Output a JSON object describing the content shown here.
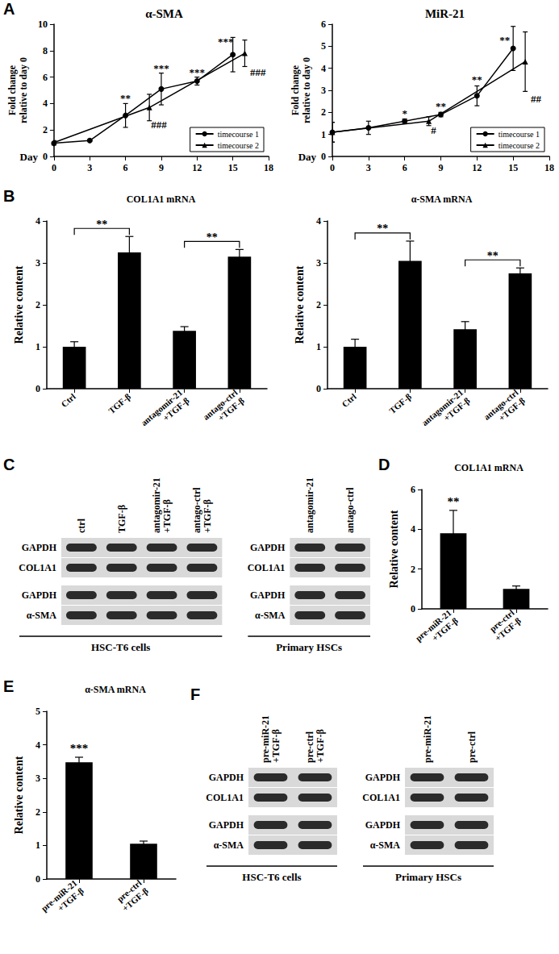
{
  "chart_data": [
    {
      "panel": "A",
      "type": "line",
      "title": "α-SMA",
      "x_label": "Day",
      "y_label": "Fold change\nrelative to day 0",
      "xlim": [
        0,
        18
      ],
      "xticks": [
        0,
        3,
        6,
        9,
        12,
        15,
        18
      ],
      "ylim": [
        0,
        10
      ],
      "yticks": [
        0,
        2,
        4,
        6,
        8,
        10
      ],
      "grid": false,
      "legend": "lower right",
      "series": [
        {
          "name": "timecourse 1",
          "color": "#000000",
          "marker": "circle",
          "line_style": "solid",
          "x": [
            0,
            3,
            6,
            9,
            12,
            15
          ],
          "values": [
            1.0,
            1.2,
            3.1,
            5.1,
            5.7,
            7.7
          ],
          "errors": [
            0.1,
            0.05,
            0.9,
            1.2,
            0.3,
            1.3
          ]
        },
        {
          "name": "timecourse 2",
          "color": "#000000",
          "marker": "triangle",
          "line_style": "solid",
          "x": [
            0,
            8,
            16
          ],
          "values": [
            1.05,
            3.7,
            7.8
          ],
          "errors": [
            0.15,
            1.0,
            1.0
          ]
        }
      ],
      "annotations": [
        {
          "x": 6,
          "y": 4.4,
          "text": "**"
        },
        {
          "x": 9,
          "y": 6.7,
          "text": "***"
        },
        {
          "x": 12,
          "y": 6.4,
          "text": "***"
        },
        {
          "x": 14.4,
          "y": 8.7,
          "text": "***"
        },
        {
          "x": 8.8,
          "y": 2.4,
          "text": "###"
        },
        {
          "x": 17.1,
          "y": 6.4,
          "text": "###"
        }
      ]
    },
    {
      "panel": "A",
      "type": "line",
      "title": "MiR-21",
      "x_label": "Day",
      "y_label": "Fold change\nrelative to day 0",
      "xlim": [
        0,
        18
      ],
      "xticks": [
        0,
        3,
        6,
        9,
        12,
        15,
        18
      ],
      "ylim": [
        0,
        6
      ],
      "yticks": [
        0,
        1,
        2,
        3,
        4,
        5,
        6
      ],
      "grid": false,
      "legend": "lower right",
      "series": [
        {
          "name": "timecourse 1",
          "color": "#000000",
          "marker": "circle",
          "line_style": "solid",
          "x": [
            0,
            3,
            6,
            9,
            12,
            15
          ],
          "values": [
            1.1,
            1.3,
            1.6,
            1.9,
            2.75,
            4.9
          ],
          "errors": [
            0.45,
            0.3,
            0.1,
            0.1,
            0.45,
            1.0
          ]
        },
        {
          "name": "timecourse 2",
          "color": "#000000",
          "marker": "triangle",
          "line_style": "solid",
          "x": [
            0,
            8,
            16
          ],
          "values": [
            1.1,
            1.6,
            4.3
          ],
          "errors": [
            0.45,
            0.2,
            1.35
          ]
        }
      ],
      "annotations": [
        {
          "x": 6,
          "y": 1.95,
          "text": "*"
        },
        {
          "x": 9,
          "y": 2.3,
          "text": "**"
        },
        {
          "x": 12,
          "y": 3.5,
          "text": "**"
        },
        {
          "x": 14.3,
          "y": 5.3,
          "text": "**"
        },
        {
          "x": 8.4,
          "y": 1.2,
          "text": "#"
        },
        {
          "x": 16.9,
          "y": 2.6,
          "text": "##"
        }
      ]
    },
    {
      "panel": "B",
      "type": "bar",
      "title": "COL1A1 mRNA",
      "y_label": "Relative content",
      "categories": [
        "Ctrl",
        "TGF-β",
        "antagomir-21\n+TGF-β",
        "antago-ctrl\n+TGF-β"
      ],
      "values": [
        1.0,
        3.25,
        1.38,
        3.15
      ],
      "errors": [
        0.12,
        0.38,
        0.1,
        0.17
      ],
      "color": "#000000",
      "ylim": [
        0,
        4
      ],
      "yticks": [
        0,
        1,
        2,
        3,
        4
      ],
      "grid": false,
      "comparisons": [
        {
          "from": "Ctrl",
          "to": "TGF-β",
          "text": "**"
        },
        {
          "from": "antagomir-21\n+TGF-β",
          "to": "antago-ctrl\n+TGF-β",
          "text": "**"
        }
      ]
    },
    {
      "panel": "B",
      "type": "bar",
      "title": "α-SMA mRNA",
      "y_label": "Relative content",
      "categories": [
        "Ctrl",
        "TGF-β",
        "antagomir-21\n+TGF-β",
        "antago-ctrl\n+TGF-β"
      ],
      "values": [
        1.0,
        3.05,
        1.42,
        2.75
      ],
      "errors": [
        0.18,
        0.47,
        0.18,
        0.13
      ],
      "color": "#000000",
      "ylim": [
        0,
        4
      ],
      "yticks": [
        0,
        1,
        2,
        3,
        4
      ],
      "grid": false,
      "comparisons": [
        {
          "from": "Ctrl",
          "to": "TGF-β",
          "text": "**"
        },
        {
          "from": "antagomir-21\n+TGF-β",
          "to": "antago-ctrl\n+TGF-β",
          "text": "**"
        }
      ]
    },
    {
      "panel": "D",
      "type": "bar",
      "title": "COL1A1 mRNA",
      "y_label": "Relative content",
      "categories": [
        "pre-miR-21\n+TGF-β",
        "pre-ctrl\n+TGF-β"
      ],
      "values": [
        3.8,
        1.0
      ],
      "errors": [
        1.15,
        0.15
      ],
      "color": "#000000",
      "ylim": [
        0,
        6
      ],
      "yticks": [
        0,
        2,
        4,
        6
      ],
      "grid": false,
      "annotations": [
        {
          "category": "pre-miR-21\n+TGF-β",
          "text": "**"
        }
      ]
    },
    {
      "panel": "E",
      "type": "bar",
      "title": "α-SMA mRNA",
      "y_label": "Relative content",
      "categories": [
        "pre-miR-21\n+TGF-β",
        "pre-ctrl\n+TGF-β"
      ],
      "values": [
        3.48,
        1.05
      ],
      "errors": [
        0.15,
        0.08
      ],
      "color": "#000000",
      "ylim": [
        0,
        5
      ],
      "yticks": [
        0,
        1,
        2,
        3,
        4,
        5
      ],
      "grid": false,
      "annotations": [
        {
          "category": "pre-miR-21\n+TGF-β",
          "text": "***"
        }
      ]
    }
  ],
  "blots": [
    {
      "panel": "C",
      "groups": [
        {
          "label": "HSC-T6 cells",
          "lanes": [
            "ctrl",
            "TGF-β",
            "antagomir-21\n+TGF-β",
            "antago-ctrl\n+TGF-β"
          ],
          "rows": [
            "GAPDH",
            "COL1A1",
            "GAPDH",
            "α-SMA"
          ]
        },
        {
          "label": "Primary HSCs",
          "lanes": [
            "antagomir-21",
            "antago-ctrl"
          ],
          "rows": [
            "GAPDH",
            "COL1A1",
            "GAPDH",
            "α-SMA"
          ]
        }
      ]
    },
    {
      "panel": "F",
      "groups": [
        {
          "label": "HSC-T6 cells",
          "lanes": [
            "pre-miR-21\n+TGF-β",
            "pre-ctrl\n+TGF-β"
          ],
          "rows": [
            "GAPDH",
            "COL1A1",
            "GAPDH",
            "α-SMA"
          ]
        },
        {
          "label": "Primary HSCs",
          "lanes": [
            "pre-miR-21",
            "pre-ctrl"
          ],
          "rows": [
            "GAPDH",
            "COL1A1",
            "GAPDH",
            "α-SMA"
          ]
        }
      ]
    }
  ]
}
